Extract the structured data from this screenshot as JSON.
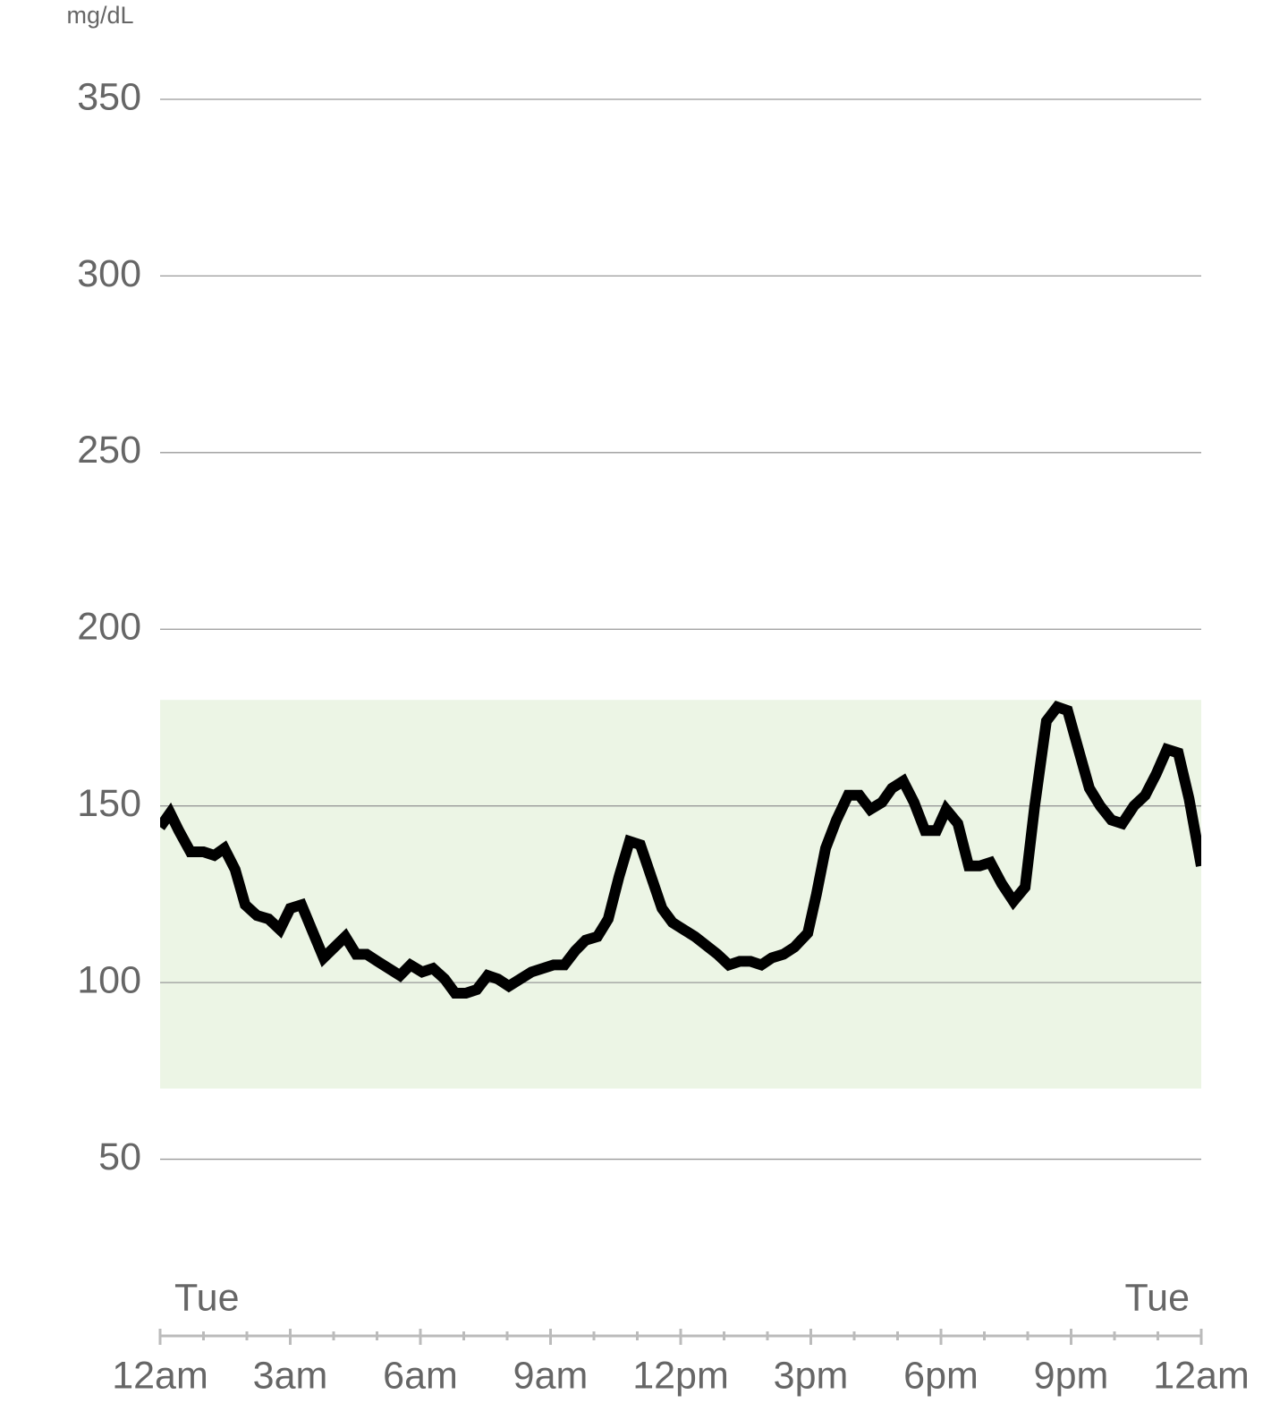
{
  "chart_data": {
    "type": "line",
    "y_label": "mg/dL",
    "annotations": [
      "Tue",
      "Tue"
    ],
    "x": [
      0,
      0.23,
      0.43,
      0.7,
      1.0,
      1.25,
      1.48,
      1.73,
      1.96,
      2.23,
      2.5,
      2.76,
      3.0,
      3.26,
      3.53,
      3.77,
      4.02,
      4.27,
      4.52,
      4.76,
      5.01,
      5.53,
      5.77,
      6.04,
      6.29,
      6.56,
      6.8,
      7.05,
      7.3,
      7.55,
      7.79,
      8.04,
      8.56,
      9.07,
      9.32,
      9.57,
      9.81,
      10.08,
      10.33,
      10.58,
      10.82,
      11.07,
      11.32,
      11.57,
      11.81,
      12.33,
      12.85,
      13.11,
      13.36,
      13.61,
      13.86,
      14.1,
      14.37,
      14.62,
      14.93,
      15.13,
      15.34,
      15.59,
      15.86,
      16.12,
      16.37,
      16.64,
      16.87,
      17.13,
      17.38,
      17.63,
      17.9,
      18.12,
      18.39,
      18.64,
      18.89,
      19.14,
      19.4,
      19.67,
      19.94,
      20.16,
      20.43,
      20.68,
      20.92,
      21.17,
      21.42,
      21.67,
      21.93,
      22.18,
      22.45,
      22.71,
      22.96,
      23.21,
      23.47,
      23.72,
      24
    ],
    "series": [
      {
        "color": "#000000",
        "values": [
          144,
          148,
          143,
          137,
          137,
          136,
          138,
          132,
          122,
          119,
          118,
          115,
          121,
          122,
          114,
          107,
          110,
          113,
          108,
          108,
          106,
          102,
          105,
          103,
          104,
          101,
          97,
          97,
          98,
          102,
          101,
          99,
          103,
          105,
          105,
          109,
          112,
          113,
          118,
          130,
          140,
          139,
          130,
          121,
          117,
          113,
          108,
          105,
          106,
          106,
          105,
          107,
          108,
          110,
          114,
          125,
          138,
          146,
          153,
          153,
          149,
          151,
          155,
          157,
          151,
          143,
          143,
          149,
          145,
          133,
          133,
          134,
          128,
          123,
          127,
          150,
          174,
          178,
          177,
          166,
          155,
          150,
          146,
          145,
          150,
          153,
          159,
          166,
          165,
          152,
          133
        ]
      }
    ],
    "target_range": [
      70,
      180
    ],
    "target_color": "#ecf5e5",
    "xlim": [
      0,
      24
    ],
    "xticks": [
      {
        "value": 0,
        "label": "12am"
      },
      {
        "value": 3,
        "label": "3am"
      },
      {
        "value": 6,
        "label": "6am"
      },
      {
        "value": 9,
        "label": "9am"
      },
      {
        "value": 12,
        "label": "12pm"
      },
      {
        "value": 15,
        "label": "3pm"
      },
      {
        "value": 18,
        "label": "6pm"
      },
      {
        "value": 21,
        "label": "9pm"
      },
      {
        "value": 24,
        "label": "12am"
      }
    ],
    "xminor": 1,
    "ylim": [
      20,
      370
    ],
    "yticks": [
      50,
      100,
      150,
      200,
      250,
      300,
      350
    ],
    "grid": true
  }
}
